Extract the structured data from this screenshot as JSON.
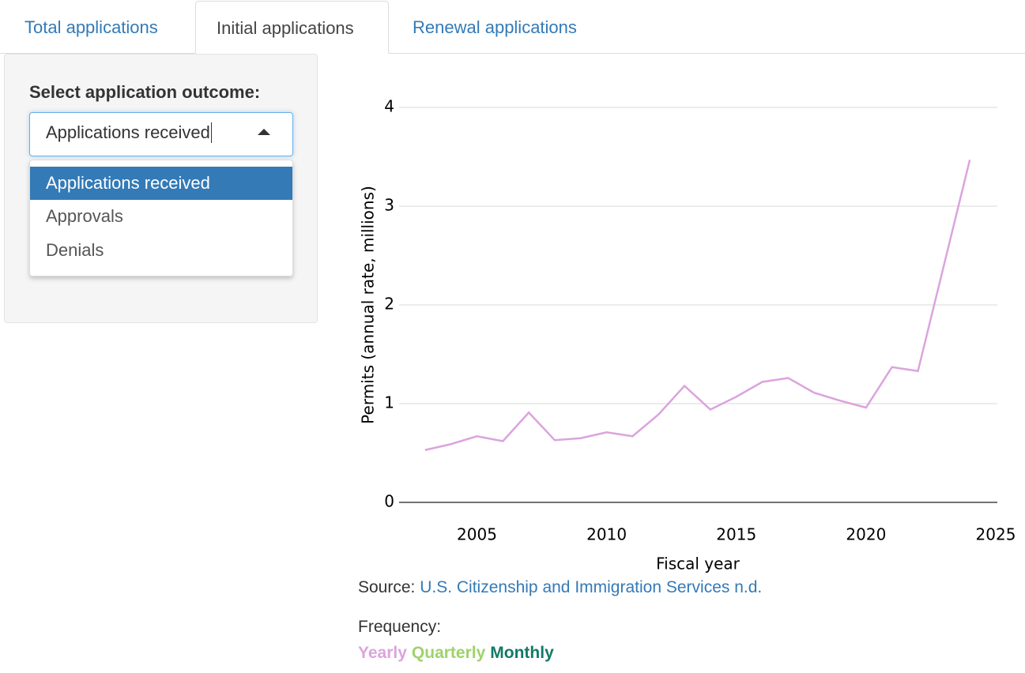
{
  "tabs": [
    "Total applications",
    "Initial applications",
    "Renewal applications"
  ],
  "sidebar": {
    "label": "Select application outcome:",
    "selected": "Applications received",
    "options": [
      "Applications received",
      "Approvals",
      "Denials"
    ]
  },
  "chart_data": {
    "type": "line",
    "x": [
      2003,
      2004,
      2005,
      2006,
      2007,
      2008,
      2009,
      2010,
      2011,
      2012,
      2013,
      2014,
      2015,
      2016,
      2017,
      2018,
      2019,
      2020,
      2021,
      2022,
      2023,
      2024
    ],
    "series": [
      {
        "color": "#dba4de",
        "values": [
          0.53,
          0.59,
          0.67,
          0.62,
          0.91,
          0.63,
          0.65,
          0.71,
          0.67,
          0.89,
          1.18,
          0.94,
          1.07,
          1.22,
          1.26,
          1.11,
          1.03,
          0.96,
          1.37,
          1.33,
          2.4,
          3.47
        ]
      }
    ],
    "xlabel": "Fiscal year",
    "ylabel": "Permits (annual rate, millions)",
    "xlim": [
      2002,
      2025
    ],
    "xticks": [
      2005,
      2010,
      2015,
      2020,
      2025
    ],
    "ylim": [
      0,
      4.2
    ],
    "yticks": [
      0,
      1,
      2,
      3,
      4
    ],
    "grid": true
  },
  "source": {
    "label": "Source:",
    "link": "U.S. Citizenship and Immigration Services n.d."
  },
  "frequency": {
    "label": "Frequency:",
    "options": [
      {
        "name": "Yearly",
        "color": "#dba4de"
      },
      {
        "name": "Quarterly",
        "color": "#9ed36a"
      },
      {
        "name": "Monthly",
        "color": "#127a67"
      }
    ]
  }
}
